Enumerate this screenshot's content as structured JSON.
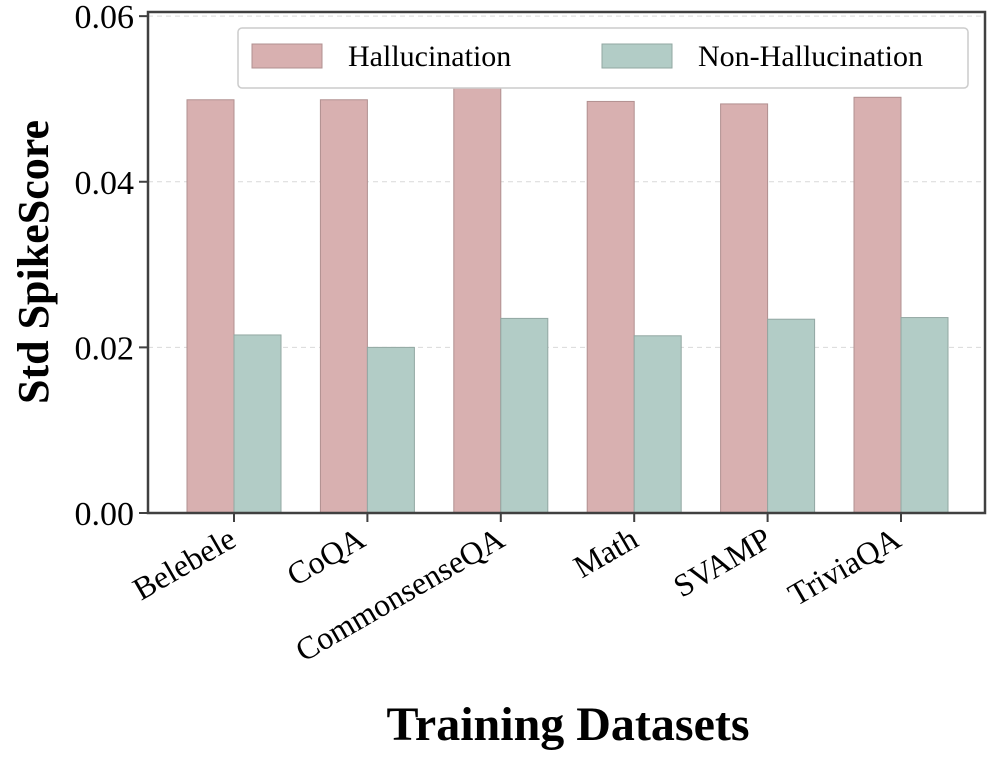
{
  "chart_data": {
    "type": "bar",
    "title": "",
    "xlabel": "Training Datasets",
    "ylabel": "Std SpikeScore",
    "categories": [
      "Belebele",
      "CoQA",
      "CommonsenseQA",
      "Math",
      "SVAMP",
      "TriviaQA"
    ],
    "series": [
      {
        "name": "Hallucination",
        "color": "#d8b0b0",
        "values": [
          0.0499,
          0.0499,
          0.0519,
          0.0497,
          0.0494,
          0.0502
        ]
      },
      {
        "name": "Non-Hallucination",
        "color": "#b2ccc6",
        "values": [
          0.0215,
          0.02,
          0.0235,
          0.0214,
          0.0234,
          0.0236
        ]
      }
    ],
    "ylim": [
      0,
      0.0605
    ],
    "yticks": [
      0.0,
      0.02,
      0.04,
      0.06
    ],
    "ytick_labels": [
      "0.00",
      "0.02",
      "0.04",
      "0.06"
    ],
    "grid": "horizontal dashed",
    "legend_position": "top-right"
  }
}
